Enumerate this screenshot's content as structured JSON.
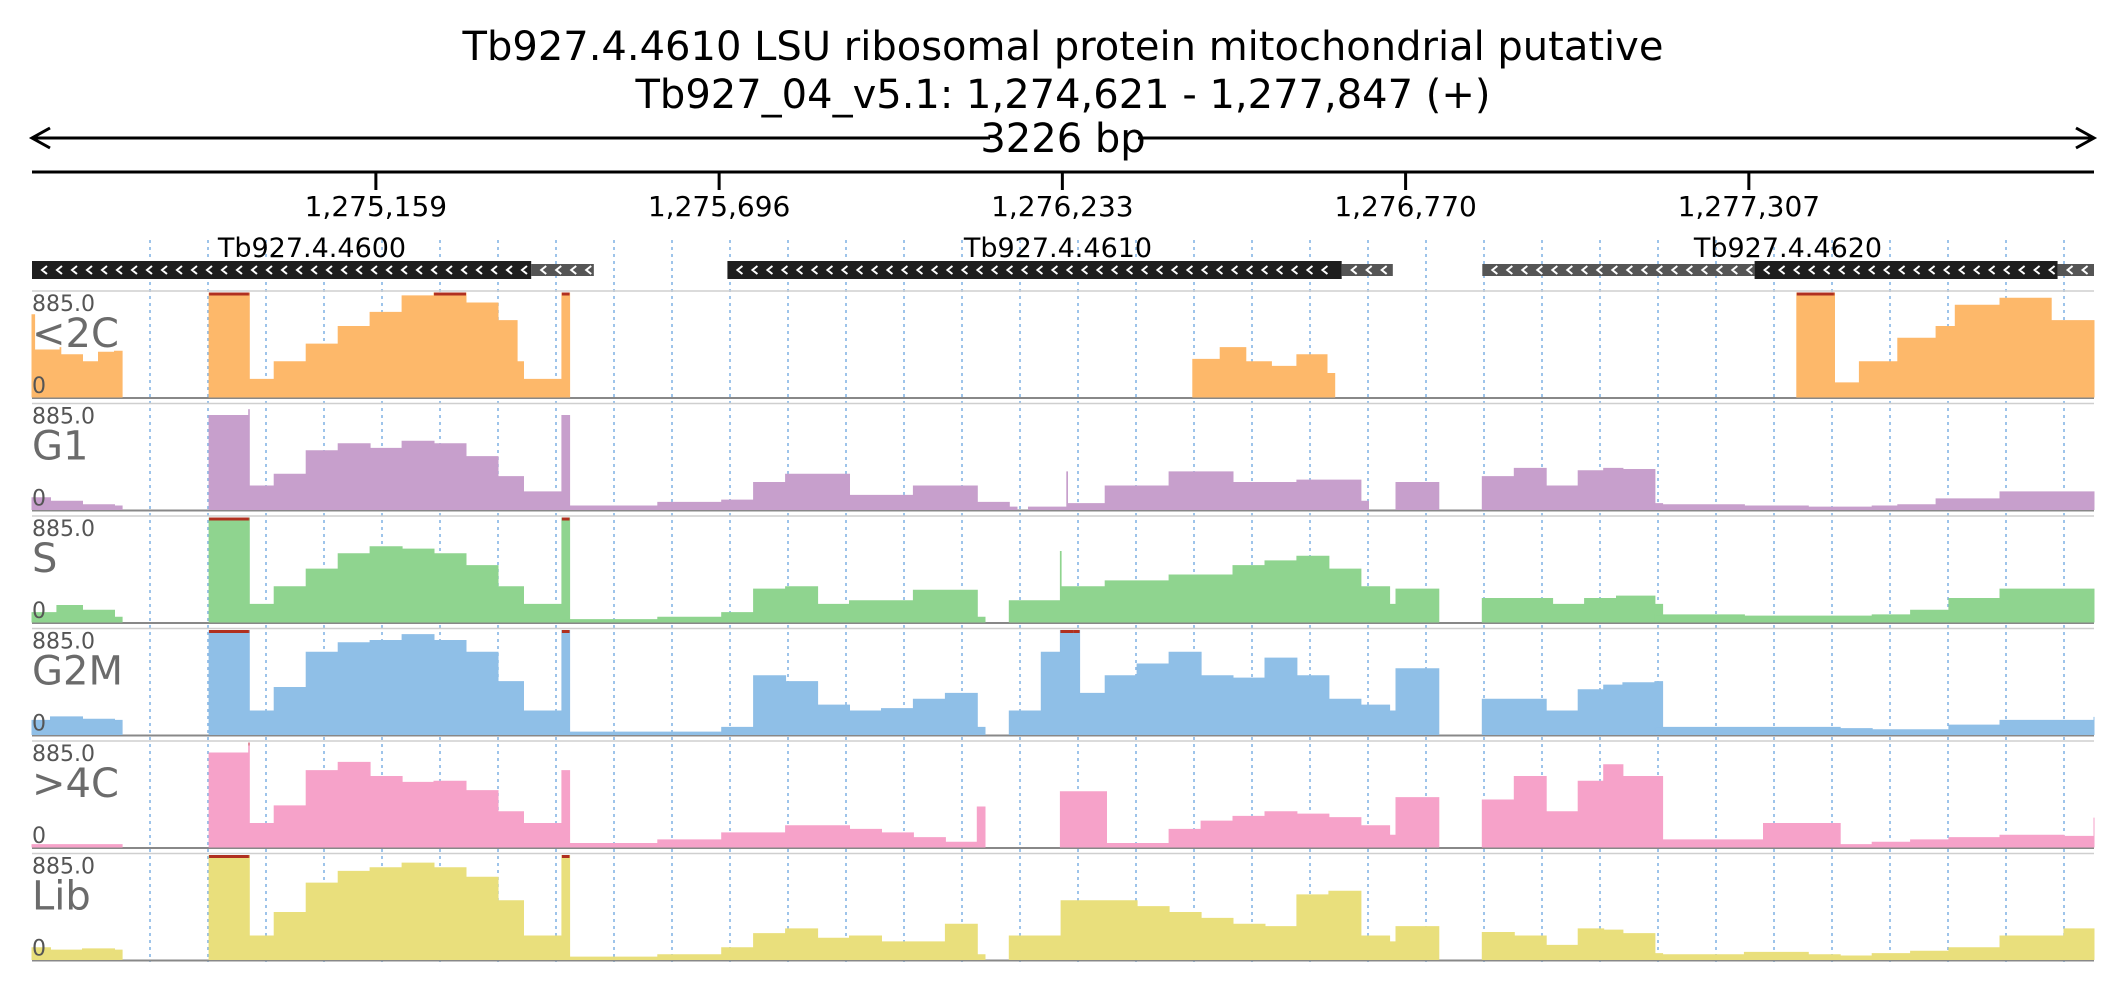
{
  "title": "Tb927.4.4610  LSU ribosomal protein  mitochondrial  putative",
  "region": "Tb927_04_v5.1: 1,274,621 - 1,277,847 (+)",
  "span": "3226 bp",
  "colors": {
    "<2C": "#fdb86a",
    "G1": "#c79fcc",
    "S": "#8fd48f",
    "G2M": "#8fbfe7",
    ">4C": "#f6a2c9",
    "Lib": "#e9df7c",
    "clip": "#b03020",
    "gene_fill": "#1e1e1e",
    "utr_fill": "#555555",
    "grid": "#7fb1e3"
  },
  "chart_data": {
    "type": "area",
    "xlim": [
      1274621,
      1277847
    ],
    "ylim": [
      0,
      885.0
    ],
    "x_ticks": [
      {
        "pos": 1275159,
        "label": "1,275,159"
      },
      {
        "pos": 1275696,
        "label": "1,275,696"
      },
      {
        "pos": 1276233,
        "label": "1,276,233"
      },
      {
        "pos": 1276770,
        "label": "1,276,770"
      },
      {
        "pos": 1277307,
        "label": "1,277,307"
      }
    ],
    "genes": [
      {
        "name": "Tb927.4.4600",
        "strand": "-",
        "start": 1274621,
        "end": 1275402,
        "utr_start": 1275402,
        "utr_end": 1275500
      },
      {
        "name": "Tb927.4.4610",
        "strand": "-",
        "start": 1275709,
        "end": 1276670,
        "utr_start": 1276670,
        "utr_end": 1276750
      },
      {
        "name": "Tb927.4.4620",
        "strand": "-",
        "start": 1277316,
        "end": 1277790,
        "utr_start": 1276890,
        "utr_end": 1277316,
        "utr2_start": 1277790,
        "utr2_end": 1277847
      }
    ],
    "series": [
      {
        "name": "<2C",
        "max": "885.0",
        "min": "0",
        "segments": [
          {
            "x": [
              1274621,
              1274625,
              1274665,
              1274666,
              1274700,
              1274725,
              1274750
            ],
            "y": [
              700,
              400,
              420,
              360,
              300,
              380,
              390
            ]
          },
          {
            "x": [
              1274898,
              1274960,
              1274961,
              1275000,
              1275050,
              1275100,
              1275150,
              1275200,
              1275250,
              1275300,
              1275350,
              1275380,
              1275390,
              1275450
            ],
            "y": [
              885,
              885,
              150,
              300,
              450,
              600,
              720,
              860,
              885,
              800,
              650,
              300,
              150,
              885
            ]
          },
          {
            "x": [
              1276437,
              1276480,
              1276520,
              1276560,
              1276600,
              1276647
            ],
            "y": [
              320,
              420,
              300,
              260,
              360,
              200
            ]
          },
          {
            "x": [
              1277382,
              1277440,
              1277441,
              1277480,
              1277540,
              1277600,
              1277630,
              1277700,
              1277780,
              1277847
            ],
            "y": [
              885,
              885,
              120,
              300,
              500,
              600,
              780,
              840,
              650,
              560
            ]
          }
        ]
      },
      {
        "name": "G1",
        "segments": [
          {
            "x": [
              1274621,
              1274650,
              1274700,
              1274750
            ],
            "y": [
              100,
              70,
              40,
              30
            ]
          },
          {
            "x": [
              1274898,
              1274960,
              1274961,
              1275000,
              1275050,
              1275100,
              1275150,
              1275200,
              1275250,
              1275300,
              1275350,
              1275390,
              1275450
            ],
            "y": [
              800,
              850,
              200,
              300,
              500,
              560,
              520,
              580,
              560,
              450,
              280,
              150,
              800
            ]
          },
          {
            "x": [
              1275451,
              1275600,
              1275700,
              1275750,
              1275800,
              1275900,
              1276000,
              1276100,
              1276150
            ],
            "y": [
              30,
              60,
              80,
              230,
              300,
              120,
              200,
              60,
              20
            ]
          },
          {
            "x": [
              1276180,
              1276240,
              1276241,
              1276300,
              1276400,
              1276500,
              1276600,
              1276700
            ],
            "y": [
              20,
              320,
              50,
              200,
              320,
              230,
              250,
              70
            ]
          },
          {
            "x": [
              1276755,
              1276810
            ],
            "y": [
              230,
              230
            ]
          },
          {
            "x": [
              1276890,
              1276940,
              1276990,
              1277040,
              1277080,
              1277110,
              1277160
            ],
            "y": [
              280,
              350,
              200,
              330,
              350,
              340,
              50
            ]
          },
          {
            "x": [
              1277160,
              1277300,
              1277400,
              1277450,
              1277500,
              1277540,
              1277600,
              1277700,
              1277847
            ],
            "y": [
              40,
              30,
              20,
              20,
              30,
              40,
              90,
              150,
              100
            ]
          }
        ]
      },
      {
        "name": "S",
        "segments": [
          {
            "x": [
              1274621,
              1274660,
              1274700,
              1274750
            ],
            "y": [
              80,
              140,
              100,
              40
            ]
          },
          {
            "x": [
              1274898,
              1274960,
              1274961,
              1275000,
              1275050,
              1275100,
              1275150,
              1275200,
              1275250,
              1275300,
              1275350,
              1275390,
              1275450
            ],
            "y": [
              885,
              885,
              150,
              300,
              450,
              580,
              640,
              620,
              580,
              480,
              300,
              150,
              885
            ]
          },
          {
            "x": [
              1275451,
              1275600,
              1275700,
              1275750,
              1275800,
              1275850,
              1275900,
              1276000,
              1276050,
              1276100
            ],
            "y": [
              20,
              40,
              80,
              280,
              300,
              150,
              180,
              270,
              270,
              40
            ]
          },
          {
            "x": [
              1276150,
              1276230,
              1276231,
              1276300,
              1276400,
              1276500,
              1276550,
              1276600,
              1276650,
              1276700,
              1276745
            ],
            "y": [
              180,
              600,
              300,
              350,
              400,
              480,
              520,
              560,
              450,
              300,
              150
            ]
          },
          {
            "x": [
              1276755,
              1276810
            ],
            "y": [
              280,
              280
            ]
          },
          {
            "x": [
              1276890,
              1276960,
              1277000,
              1277050,
              1277100,
              1277160
            ],
            "y": [
              200,
              200,
              150,
              200,
              220,
              150
            ]
          },
          {
            "x": [
              1277160,
              1277300,
              1277400,
              1277450,
              1277500,
              1277560,
              1277620,
              1277700,
              1277847
            ],
            "y": [
              60,
              50,
              50,
              50,
              60,
              100,
              200,
              280,
              200
            ]
          }
        ]
      },
      {
        "name": "G2M",
        "segments": [
          {
            "x": [
              1274621,
              1274650,
              1274700,
              1274750
            ],
            "y": [
              120,
              150,
              130,
              120
            ]
          },
          {
            "x": [
              1274898,
              1274960,
              1274961,
              1275000,
              1275050,
              1275100,
              1275150,
              1275200,
              1275250,
              1275300,
              1275350,
              1275390,
              1275450
            ],
            "y": [
              885,
              885,
              200,
              400,
              700,
              780,
              800,
              850,
              800,
              700,
              450,
              200,
              885
            ]
          },
          {
            "x": [
              1275451,
              1275600,
              1275700,
              1275750,
              1275800,
              1275850,
              1275900,
              1275950,
              1276000,
              1276050,
              1276100
            ],
            "y": [
              20,
              20,
              60,
              500,
              450,
              250,
              200,
              220,
              300,
              350,
              60
            ]
          },
          {
            "x": [
              1276150,
              1276200,
              1276230,
              1276250,
              1276260,
              1276300,
              1276350,
              1276400,
              1276450,
              1276500,
              1276550,
              1276600,
              1276650,
              1276700,
              1276745
            ],
            "y": [
              200,
              700,
              885,
              885,
              350,
              500,
              600,
              700,
              500,
              480,
              650,
              500,
              300,
              250,
              200
            ]
          },
          {
            "x": [
              1276755,
              1276810
            ],
            "y": [
              560,
              560
            ]
          },
          {
            "x": [
              1276890,
              1276940,
              1276990,
              1277040,
              1277080,
              1277110,
              1277160
            ],
            "y": [
              300,
              300,
              200,
              380,
              420,
              440,
              450
            ]
          },
          {
            "x": [
              1277160,
              1277300,
              1277400,
              1277450,
              1277500,
              1277560,
              1277620,
              1277700,
              1277800,
              1277847
            ],
            "y": [
              60,
              60,
              60,
              50,
              40,
              40,
              80,
              120,
              120,
              150
            ]
          }
        ]
      },
      {
        "name": ">4C",
        "segments": [
          {
            "x": [
              1274621,
              1274650,
              1274700,
              1274750
            ],
            "y": [
              20,
              20,
              20,
              20
            ]
          },
          {
            "x": [
              1274898,
              1274960,
              1274961,
              1275000,
              1275050,
              1275100,
              1275150,
              1275200,
              1275250,
              1275300,
              1275350,
              1275390,
              1275450
            ],
            "y": [
              800,
              885,
              200,
              350,
              650,
              720,
              600,
              550,
              560,
              480,
              300,
              200,
              650
            ]
          },
          {
            "x": [
              1275451,
              1275600,
              1275700,
              1275800,
              1275900,
              1275950,
              1276000,
              1276050,
              1276100
            ],
            "y": [
              30,
              60,
              120,
              180,
              150,
              120,
              80,
              40,
              340
            ]
          },
          {
            "x": [
              1276230,
              1276290
            ],
            "y": [
              470,
              470
            ]
          },
          {
            "x": [
              1276300,
              1276400,
              1276450,
              1276500,
              1276550,
              1276600,
              1276650,
              1276700,
              1276745
            ],
            "y": [
              30,
              150,
              220,
              260,
              300,
              280,
              250,
              180,
              100
            ]
          },
          {
            "x": [
              1276755,
              1276810
            ],
            "y": [
              420,
              420
            ]
          },
          {
            "x": [
              1276890,
              1276940,
              1276990,
              1277040,
              1277080,
              1277110,
              1277160
            ],
            "y": [
              400,
              600,
              300,
              560,
              700,
              600,
              600
            ]
          },
          {
            "x": [
              1277160,
              1277300,
              1277330,
              1277390,
              1277450,
              1277500,
              1277560,
              1277620,
              1277700,
              1277800,
              1277847
            ],
            "y": [
              60,
              60,
              200,
              200,
              20,
              40,
              60,
              80,
              100,
              90,
              250
            ]
          }
        ]
      },
      {
        "name": "Lib",
        "segments": [
          {
            "x": [
              1274621,
              1274650,
              1274700,
              1274750
            ],
            "y": [
              100,
              80,
              90,
              80
            ]
          },
          {
            "x": [
              1274898,
              1274960,
              1274961,
              1275000,
              1275050,
              1275100,
              1275150,
              1275200,
              1275250,
              1275300,
              1275350,
              1275390,
              1275450
            ],
            "y": [
              885,
              885,
              200,
              400,
              650,
              750,
              780,
              820,
              780,
              700,
              500,
              200,
              885
            ]
          },
          {
            "x": [
              1275451,
              1275600,
              1275700,
              1275750,
              1275800,
              1275850,
              1275900,
              1275950,
              1276000,
              1276050,
              1276100
            ],
            "y": [
              20,
              40,
              100,
              220,
              260,
              180,
              200,
              150,
              150,
              300,
              40
            ]
          },
          {
            "x": [
              1276150,
              1276230,
              1276231,
              1276300,
              1276350,
              1276400,
              1276450,
              1276500,
              1276550,
              1276600,
              1276650,
              1276700,
              1276745
            ],
            "y": [
              200,
              200,
              500,
              500,
              450,
              400,
              350,
              300,
              280,
              550,
              580,
              200,
              150
            ]
          },
          {
            "x": [
              1276755,
              1276810
            ],
            "y": [
              280,
              280
            ]
          },
          {
            "x": [
              1276890,
              1276940,
              1276990,
              1277040,
              1277080,
              1277110,
              1277160
            ],
            "y": [
              230,
              200,
              120,
              260,
              250,
              220,
              50
            ]
          },
          {
            "x": [
              1277160,
              1277300,
              1277400,
              1277450,
              1277500,
              1277560,
              1277620,
              1277700,
              1277800,
              1277847
            ],
            "y": [
              40,
              60,
              40,
              30,
              50,
              70,
              100,
              200,
              260,
              150
            ]
          }
        ]
      }
    ]
  }
}
